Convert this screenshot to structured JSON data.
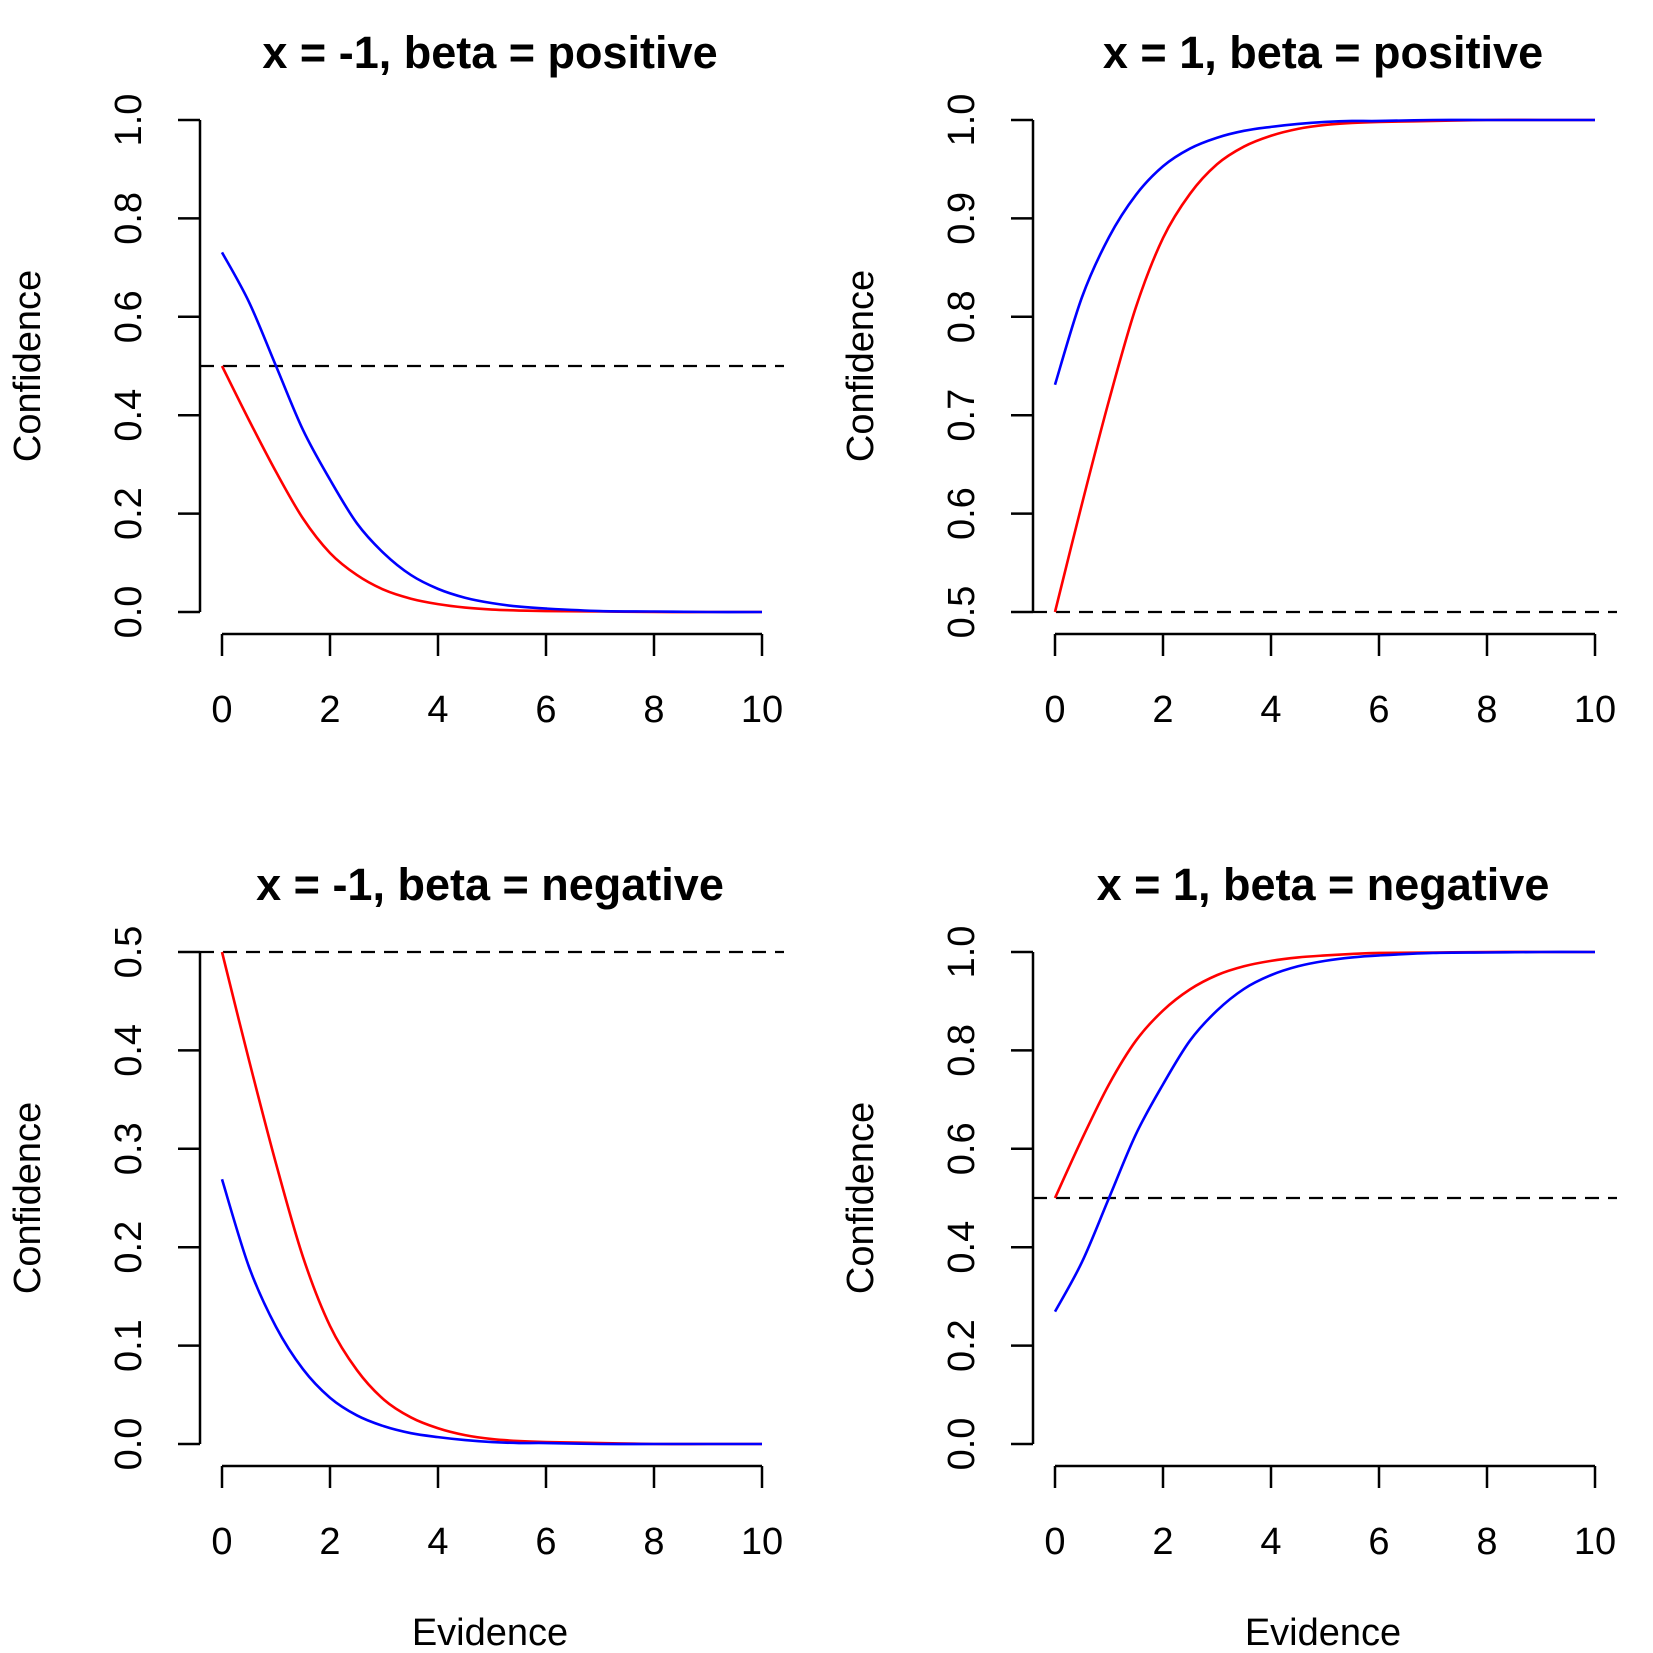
{
  "chart_data": [
    {
      "type": "line",
      "title": "x = -1, beta = positive",
      "xlabel": "",
      "ylabel": "Confidence",
      "xlim": [
        0,
        10
      ],
      "ylim": [
        0,
        1
      ],
      "xticks": [
        "0",
        "2",
        "4",
        "6",
        "8",
        "10"
      ],
      "yticks": [
        "0.0",
        "0.2",
        "0.4",
        "0.6",
        "0.8",
        "1.0"
      ],
      "reference_line": {
        "y": 0.5,
        "style": "dashed",
        "color": "#000000"
      },
      "series": [
        {
          "color": "#ff0000",
          "x": [
            0,
            0.5,
            1,
            1.5,
            2,
            2.5,
            3,
            3.5,
            4,
            4.5,
            5,
            5.5,
            6,
            7,
            8,
            9,
            10
          ],
          "y": [
            0.5,
            0.39,
            0.285,
            0.19,
            0.12,
            0.075,
            0.045,
            0.027,
            0.016,
            0.009,
            0.005,
            0.003,
            0.002,
            0.001,
            0.0,
            0.0,
            0.0
          ]
        },
        {
          "color": "#0000ff",
          "x": [
            0,
            0.5,
            1,
            1.5,
            2,
            2.5,
            3,
            3.5,
            4,
            4.5,
            5,
            5.5,
            6,
            7,
            8,
            9,
            10
          ],
          "y": [
            0.731,
            0.63,
            0.5,
            0.37,
            0.269,
            0.18,
            0.119,
            0.075,
            0.047,
            0.029,
            0.018,
            0.011,
            0.007,
            0.002,
            0.001,
            0.0,
            0.0
          ]
        }
      ]
    },
    {
      "type": "line",
      "title": "x = 1, beta = positive",
      "xlabel": "",
      "ylabel": "Confidence",
      "xlim": [
        0,
        10
      ],
      "ylim": [
        0.5,
        1
      ],
      "xticks": [
        "0",
        "2",
        "4",
        "6",
        "8",
        "10"
      ],
      "yticks": [
        "0.5",
        "0.6",
        "0.7",
        "0.8",
        "0.9",
        "1.0"
      ],
      "reference_line": {
        "y": 0.5,
        "style": "dashed",
        "color": "#000000"
      },
      "series": [
        {
          "color": "#ff0000",
          "x": [
            0,
            0.5,
            1,
            1.5,
            2,
            2.5,
            3,
            3.5,
            4,
            4.5,
            5,
            5.5,
            6,
            7,
            8,
            9,
            10
          ],
          "y": [
            0.5,
            0.61,
            0.715,
            0.81,
            0.88,
            0.925,
            0.955,
            0.973,
            0.984,
            0.991,
            0.995,
            0.997,
            0.998,
            0.999,
            1.0,
            1.0,
            1.0
          ]
        },
        {
          "color": "#0000ff",
          "x": [
            0,
            0.5,
            1,
            1.5,
            2,
            2.5,
            3,
            3.5,
            4,
            4.5,
            5,
            5.5,
            6,
            7,
            8,
            9,
            10
          ],
          "y": [
            0.731,
            0.82,
            0.881,
            0.924,
            0.953,
            0.971,
            0.982,
            0.989,
            0.993,
            0.996,
            0.998,
            0.999,
            0.999,
            1.0,
            1.0,
            1.0,
            1.0
          ]
        }
      ]
    },
    {
      "type": "line",
      "title": "x = -1, beta = negative",
      "xlabel": "Evidence",
      "ylabel": "Confidence",
      "xlim": [
        0,
        10
      ],
      "ylim": [
        0,
        0.5
      ],
      "xticks": [
        "0",
        "2",
        "4",
        "6",
        "8",
        "10"
      ],
      "yticks": [
        "0.0",
        "0.1",
        "0.2",
        "0.3",
        "0.4",
        "0.5"
      ],
      "reference_line": {
        "y": 0.5,
        "style": "dashed",
        "color": "#000000"
      },
      "series": [
        {
          "color": "#ff0000",
          "x": [
            0,
            0.5,
            1,
            1.5,
            2,
            2.5,
            3,
            3.5,
            4,
            4.5,
            5,
            5.5,
            6,
            7,
            8,
            9,
            10
          ],
          "y": [
            0.5,
            0.39,
            0.285,
            0.19,
            0.12,
            0.075,
            0.045,
            0.027,
            0.016,
            0.009,
            0.005,
            0.003,
            0.002,
            0.001,
            0.0,
            0.0,
            0.0
          ]
        },
        {
          "color": "#0000ff",
          "x": [
            0,
            0.5,
            1,
            1.5,
            2,
            2.5,
            3,
            3.5,
            4,
            4.5,
            5,
            5.5,
            6,
            7,
            8,
            9,
            10
          ],
          "y": [
            0.269,
            0.18,
            0.119,
            0.076,
            0.047,
            0.029,
            0.018,
            0.011,
            0.007,
            0.004,
            0.002,
            0.001,
            0.001,
            0.0,
            0.0,
            0.0,
            0.0
          ]
        }
      ]
    },
    {
      "type": "line",
      "title": "x = 1, beta = negative",
      "xlabel": "Evidence",
      "ylabel": "Confidence",
      "xlim": [
        0,
        10
      ],
      "ylim": [
        0,
        1
      ],
      "xticks": [
        "0",
        "2",
        "4",
        "6",
        "8",
        "10"
      ],
      "yticks": [
        "0.0",
        "0.2",
        "0.4",
        "0.6",
        "0.8",
        "1.0"
      ],
      "reference_line": {
        "y": 0.5,
        "style": "dashed",
        "color": "#000000"
      },
      "series": [
        {
          "color": "#ff0000",
          "x": [
            0,
            0.5,
            1,
            1.5,
            2,
            2.5,
            3,
            3.5,
            4,
            4.5,
            5,
            5.5,
            6,
            7,
            8,
            9,
            10
          ],
          "y": [
            0.5,
            0.62,
            0.731,
            0.82,
            0.881,
            0.924,
            0.953,
            0.971,
            0.982,
            0.989,
            0.993,
            0.996,
            0.998,
            0.999,
            1.0,
            1.0,
            1.0
          ]
        },
        {
          "color": "#0000ff",
          "x": [
            0,
            0.5,
            1,
            1.5,
            2,
            2.5,
            3,
            3.5,
            4,
            4.5,
            5,
            5.5,
            6,
            7,
            8,
            9,
            10
          ],
          "y": [
            0.269,
            0.37,
            0.5,
            0.63,
            0.731,
            0.82,
            0.881,
            0.925,
            0.953,
            0.971,
            0.982,
            0.989,
            0.993,
            0.998,
            0.999,
            1.0,
            1.0
          ]
        }
      ]
    }
  ]
}
